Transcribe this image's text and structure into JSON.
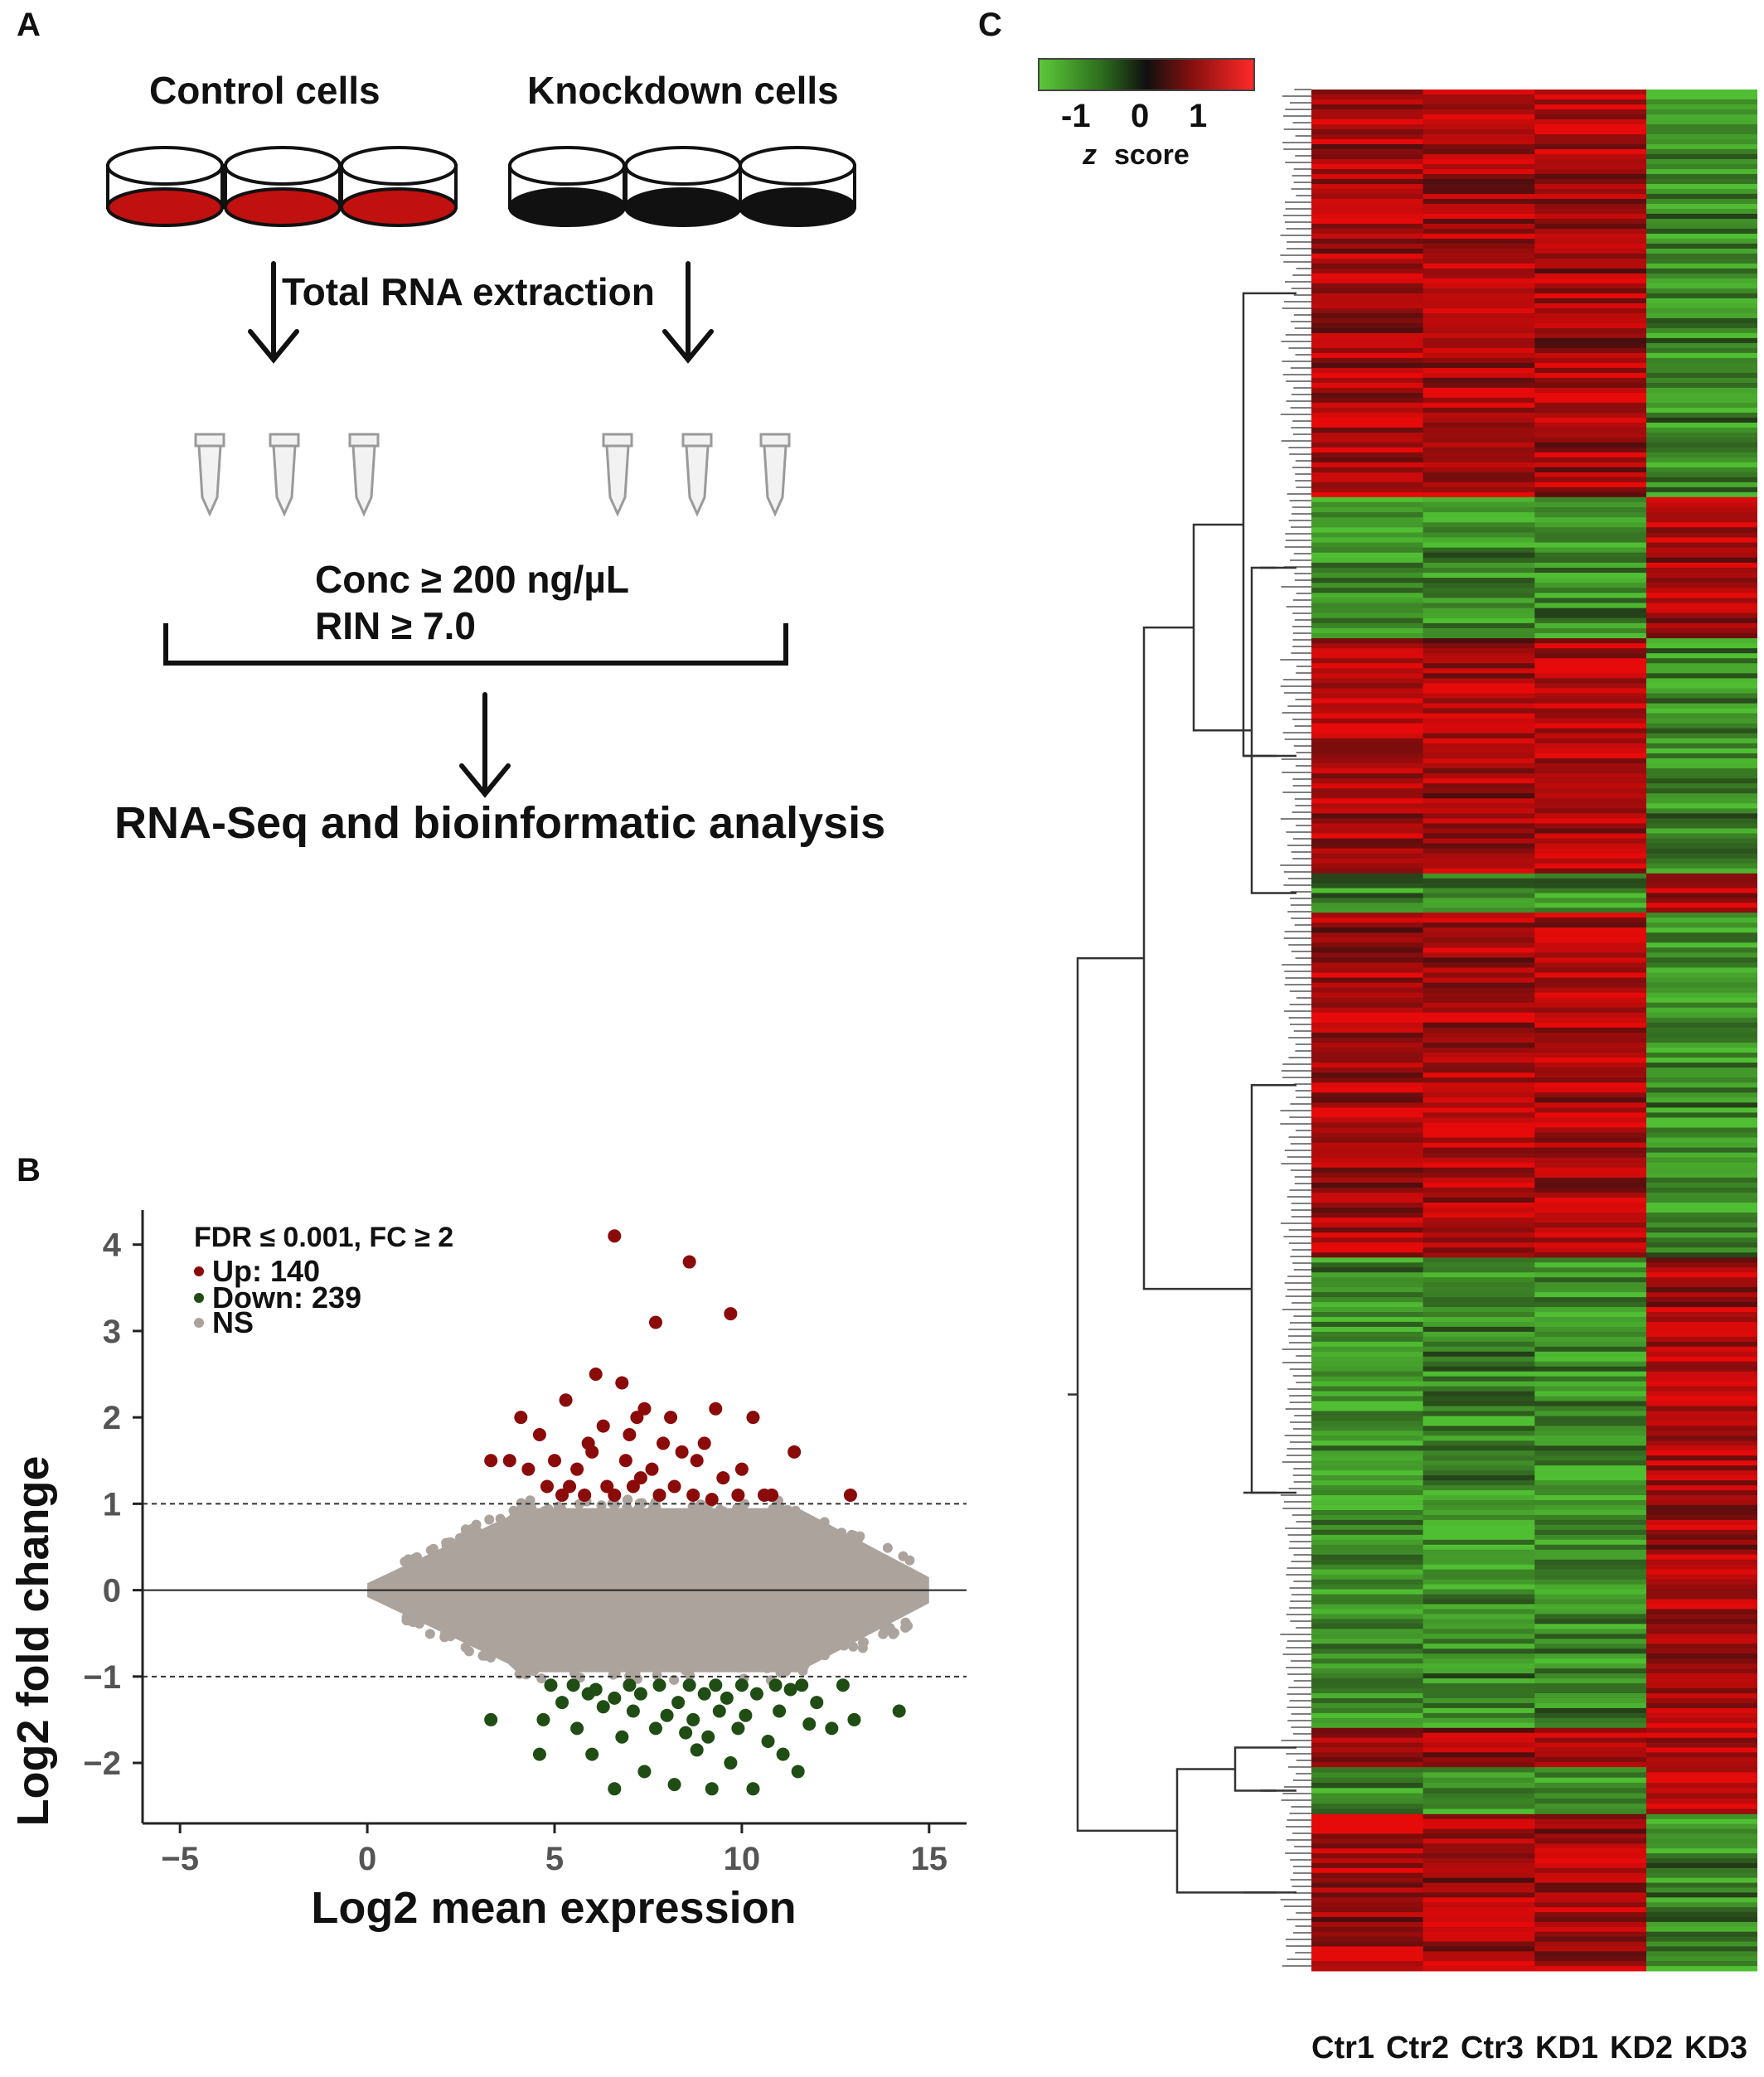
{
  "panel_a": {
    "label": "A",
    "control_label": "Control cells",
    "knockdown_label": "Knockdown cells",
    "extraction_label": "Total RNA extraction",
    "criteria_line1": "Conc  ≥ 200 ng/µL",
    "criteria_line2": "RIN ≥ 7.0",
    "result_label": "RNA-Seq and bioinformatic analysis",
    "colors": {
      "control_fill": "#c01010",
      "knockdown_fill": "#111111"
    }
  },
  "panel_b": {
    "label": "B",
    "legend_title": "FDR ≤ 0.001, FC ≥ 2",
    "legend": [
      {
        "label": "Up: 140",
        "color": "#8b0a0a"
      },
      {
        "label": "Down: 239",
        "color": "#1f4d14"
      },
      {
        "label": "NS",
        "color": "#aba39c"
      }
    ],
    "chart_data": {
      "type": "scatter",
      "xlabel": "Log2 mean expression",
      "ylabel": "Log2 fold change",
      "xlim": [
        -6,
        16
      ],
      "ylim": [
        -2.7,
        4.4
      ],
      "xticks": [
        -5,
        0,
        5,
        10,
        15
      ],
      "yticks": [
        -2,
        -1,
        0,
        1,
        2,
        3,
        4
      ],
      "xtick_labels": [
        "−5",
        "0",
        "5",
        "10",
        "15"
      ],
      "ytick_labels": [
        "−2",
        "−1",
        "0",
        "1",
        "2",
        "3",
        "4"
      ],
      "threshold_lines": [
        1,
        -1
      ],
      "zero_line": 0,
      "series": [
        {
          "name": "Up: 140",
          "color": "#8b0a0a",
          "x": [
            6.6,
            8.6,
            7.7,
            9.7,
            6.1,
            6.8,
            5.3,
            7.4,
            7.2,
            8.1,
            9.3,
            10.3,
            4.1,
            4.6,
            5.9,
            6.3,
            7.0,
            7.9,
            8.4,
            9.0,
            11.4,
            3.3,
            3.8,
            4.3,
            5.0,
            5.6,
            6.0,
            6.9,
            7.6,
            8.8,
            9.5,
            10.0,
            10.6,
            12.9,
            4.8,
            5.4,
            6.4,
            7.3,
            8.2,
            9.9,
            5.2,
            5.8,
            6.6,
            7.1,
            7.8,
            8.7,
            9.2,
            10.8
          ],
          "y": [
            4.1,
            3.8,
            3.1,
            3.2,
            2.5,
            2.4,
            2.2,
            2.1,
            2.0,
            2.0,
            2.1,
            2.0,
            2.0,
            1.8,
            1.7,
            1.9,
            1.8,
            1.7,
            1.6,
            1.7,
            1.6,
            1.5,
            1.5,
            1.4,
            1.5,
            1.4,
            1.6,
            1.5,
            1.4,
            1.5,
            1.3,
            1.4,
            1.1,
            1.1,
            1.2,
            1.2,
            1.2,
            1.3,
            1.2,
            1.1,
            1.1,
            1.1,
            1.1,
            1.2,
            1.1,
            1.1,
            1.05,
            1.1
          ]
        },
        {
          "name": "Down: 239",
          "color": "#1f4d14",
          "x": [
            6.6,
            9.2,
            10.3,
            8.2,
            11.5,
            4.6,
            9.7,
            7.4,
            11.1,
            6.0,
            8.8,
            3.3,
            12.4,
            14.2,
            4.7,
            5.6,
            6.8,
            7.7,
            8.5,
            9.1,
            9.9,
            10.7,
            11.8,
            13.0,
            5.2,
            6.3,
            7.1,
            8.0,
            8.7,
            9.4,
            10.1,
            11.0,
            12.0,
            5.9,
            6.6,
            7.3,
            8.3,
            9.0,
            9.6,
            10.4,
            11.3,
            12.7,
            4.9,
            5.5,
            6.1,
            7.0,
            7.8,
            8.6,
            9.3,
            10.0,
            10.9,
            11.6
          ],
          "y": [
            -2.3,
            -2.3,
            -2.3,
            -2.25,
            -2.1,
            -1.9,
            -2.0,
            -2.1,
            -1.9,
            -1.9,
            -1.85,
            -1.5,
            -1.6,
            -1.4,
            -1.5,
            -1.6,
            -1.7,
            -1.6,
            -1.65,
            -1.7,
            -1.6,
            -1.75,
            -1.55,
            -1.5,
            -1.3,
            -1.35,
            -1.4,
            -1.45,
            -1.5,
            -1.4,
            -1.45,
            -1.4,
            -1.3,
            -1.2,
            -1.25,
            -1.2,
            -1.3,
            -1.2,
            -1.25,
            -1.2,
            -1.15,
            -1.1,
            -1.1,
            -1.1,
            -1.15,
            -1.1,
            -1.1,
            -1.1,
            -1.1,
            -1.1,
            -1.1,
            -1.1
          ]
        }
      ]
    }
  },
  "panel_c": {
    "label": "C",
    "scale_ticks": [
      "-1",
      "0",
      "1"
    ],
    "scale_caption_z": "z",
    "scale_caption_score": "score",
    "scale_colors": [
      "#5cc83a",
      "#101010",
      "#c01010",
      "#ff2a2a"
    ],
    "chart_data": {
      "type": "heatmap",
      "columns": [
        "Ctr1",
        "Ctr2",
        "Ctr3",
        "KD1",
        "KD2",
        "KD3"
      ],
      "blocks": [
        {
          "pattern": [
            1,
            1,
            1,
            -1,
            -1,
            -1
          ],
          "weight": 26
        },
        {
          "pattern": [
            -1,
            -1,
            -1,
            1,
            1,
            1
          ],
          "weight": 9
        },
        {
          "pattern": [
            1,
            1,
            1,
            -1,
            -1,
            -1
          ],
          "weight": 15
        },
        {
          "pattern": [
            -1,
            -1,
            -1,
            1,
            1,
            1
          ],
          "weight": 2.5
        },
        {
          "pattern": [
            1,
            1,
            1,
            -1,
            -1,
            -1
          ],
          "weight": 22
        },
        {
          "pattern": [
            -1,
            -1,
            -1,
            1,
            1,
            1
          ],
          "weight": 30
        },
        {
          "pattern": [
            1,
            1,
            1,
            1,
            1,
            1
          ],
          "weight": 2.5
        },
        {
          "pattern": [
            -1,
            -1,
            -1,
            1,
            1,
            1
          ],
          "weight": 3
        },
        {
          "pattern": [
            1,
            1,
            1,
            -1,
            -1,
            -1
          ],
          "weight": 10
        }
      ],
      "z_range": [
        -1.5,
        1.5
      ]
    }
  }
}
